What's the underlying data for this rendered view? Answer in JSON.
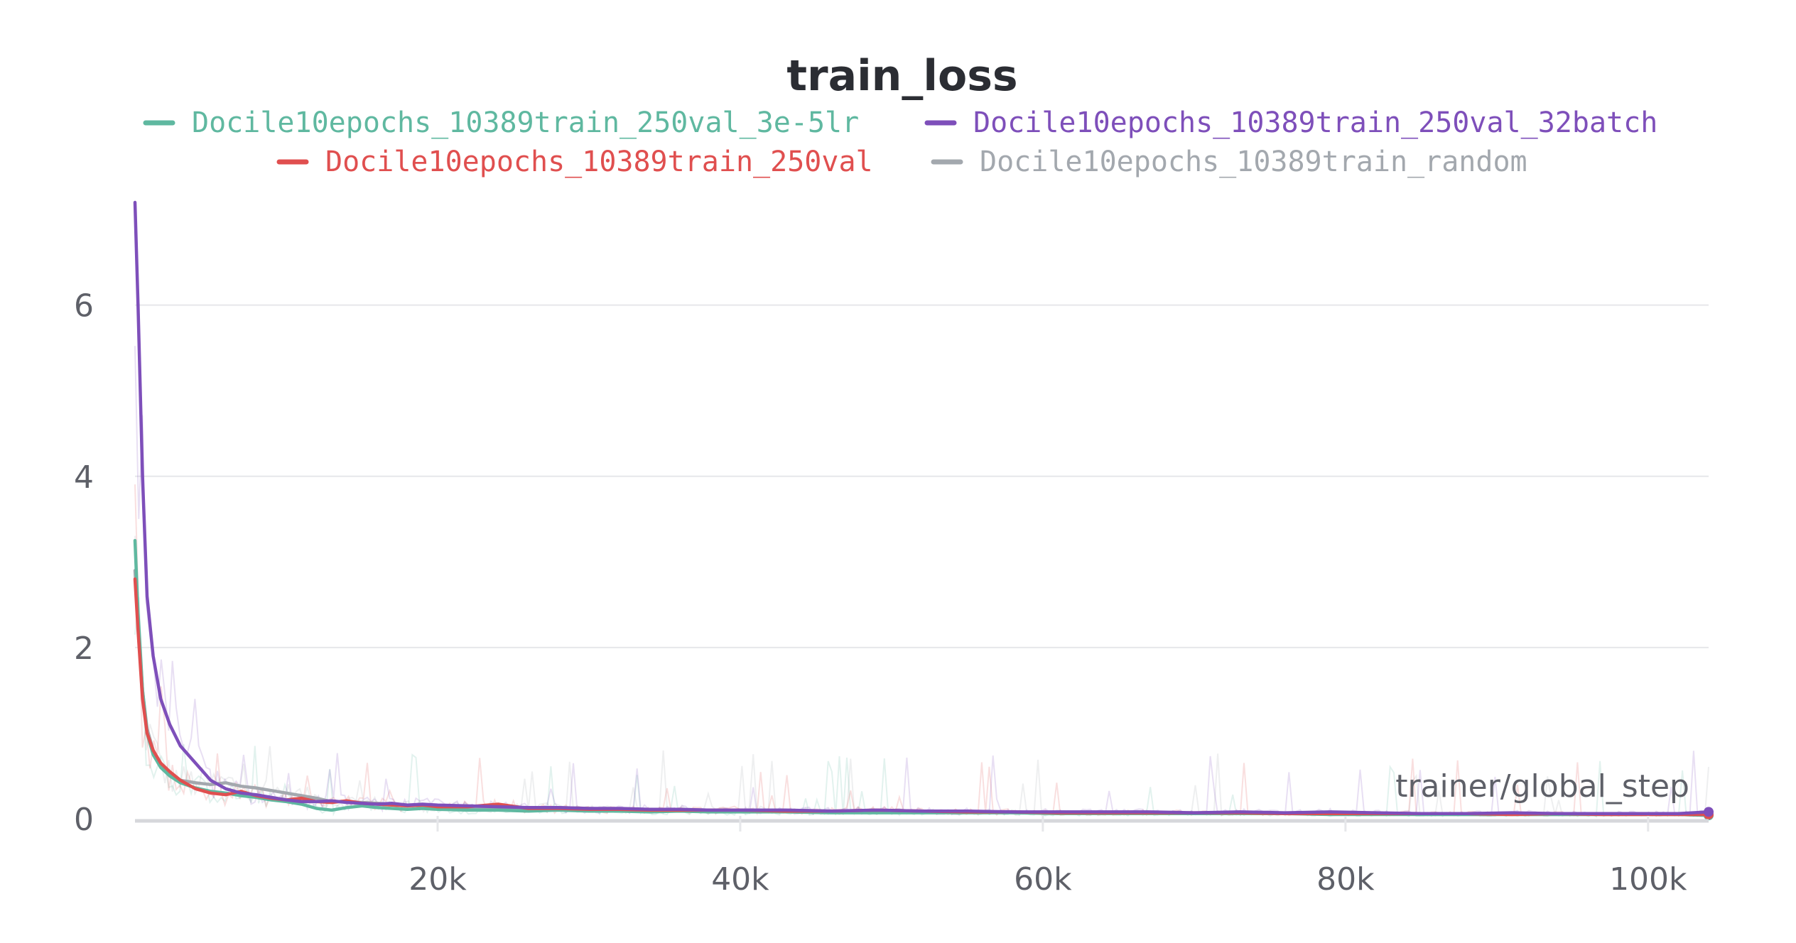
{
  "chart_data": {
    "type": "line",
    "title": "train_loss",
    "xlabel": "trainer/global_step",
    "ylabel": "",
    "xlim": [
      0,
      104000
    ],
    "ylim": [
      0,
      7.2
    ],
    "grid": true,
    "legend_position": "top",
    "x_ticks": [
      {
        "value": 20000,
        "label": "20k"
      },
      {
        "value": 40000,
        "label": "40k"
      },
      {
        "value": 60000,
        "label": "60k"
      },
      {
        "value": 80000,
        "label": "80k"
      },
      {
        "value": 100000,
        "label": "100k"
      }
    ],
    "y_ticks": [
      {
        "value": 0,
        "label": "0"
      },
      {
        "value": 2,
        "label": "2"
      },
      {
        "value": 4,
        "label": "4"
      },
      {
        "value": 6,
        "label": "6"
      }
    ],
    "x": [
      0,
      200,
      500,
      800,
      1200,
      1700,
      2300,
      3000,
      4000,
      5000,
      6000,
      7000,
      8000,
      9000,
      10000,
      11000,
      12000,
      13000,
      14000,
      15000,
      16000,
      17000,
      18000,
      19000,
      20000,
      22000,
      24000,
      26000,
      28000,
      30000,
      32000,
      34000,
      36000,
      38000,
      40000,
      43000,
      46000,
      49000,
      52000,
      55000,
      58000,
      61000,
      64000,
      67000,
      70000,
      73000,
      76000,
      79000,
      82000,
      85000,
      88000,
      91000,
      94000,
      97000,
      100000,
      102000,
      104000
    ],
    "series": [
      {
        "name": "Docile10epochs_10389train_250val_3e-5lr",
        "color": "#5fb8a0",
        "values": [
          3.25,
          2.4,
          1.5,
          1.0,
          0.75,
          0.6,
          0.5,
          0.42,
          0.36,
          0.32,
          0.3,
          0.27,
          0.25,
          0.22,
          0.2,
          0.17,
          0.12,
          0.1,
          0.13,
          0.15,
          0.13,
          0.12,
          0.11,
          0.12,
          0.11,
          0.1,
          0.1,
          0.09,
          0.1,
          0.09,
          0.09,
          0.08,
          0.09,
          0.08,
          0.08,
          0.08,
          0.07,
          0.07,
          0.07,
          0.07,
          0.07,
          0.06,
          0.06,
          0.06,
          0.06,
          0.06,
          0.06,
          0.05,
          0.05,
          0.05,
          0.05,
          0.05,
          0.05,
          0.05,
          0.05,
          0.05,
          0.04
        ]
      },
      {
        "name": "Docile10epochs_10389train_250val_32batch",
        "color": "#7e4fba",
        "values": [
          7.2,
          6.0,
          4.0,
          2.6,
          1.9,
          1.4,
          1.1,
          0.85,
          0.65,
          0.45,
          0.35,
          0.3,
          0.28,
          0.25,
          0.22,
          0.2,
          0.2,
          0.21,
          0.19,
          0.18,
          0.17,
          0.18,
          0.16,
          0.17,
          0.16,
          0.15,
          0.14,
          0.13,
          0.13,
          0.12,
          0.12,
          0.11,
          0.11,
          0.1,
          0.1,
          0.1,
          0.09,
          0.1,
          0.09,
          0.09,
          0.08,
          0.08,
          0.08,
          0.08,
          0.07,
          0.08,
          0.07,
          0.08,
          0.07,
          0.06,
          0.06,
          0.07,
          0.06,
          0.06,
          0.06,
          0.06,
          0.08
        ]
      },
      {
        "name": "Docile10epochs_10389train_250val",
        "color": "#e04f4f",
        "values": [
          2.8,
          2.2,
          1.4,
          1.0,
          0.8,
          0.65,
          0.55,
          0.45,
          0.35,
          0.3,
          0.28,
          0.32,
          0.27,
          0.24,
          0.22,
          0.24,
          0.2,
          0.19,
          0.21,
          0.18,
          0.17,
          0.16,
          0.15,
          0.16,
          0.14,
          0.14,
          0.17,
          0.12,
          0.12,
          0.11,
          0.11,
          0.1,
          0.1,
          0.1,
          0.1,
          0.09,
          0.09,
          0.1,
          0.09,
          0.08,
          0.08,
          0.07,
          0.07,
          0.07,
          0.07,
          0.07,
          0.06,
          0.06,
          0.06,
          0.06,
          0.06,
          0.05,
          0.06,
          0.05,
          0.05,
          0.05,
          0.05
        ]
      },
      {
        "name": "Docile10epochs_10389train_random",
        "color": "#a3a8ae",
        "values": [
          2.9,
          2.3,
          1.5,
          1.05,
          0.8,
          0.62,
          0.5,
          0.45,
          0.42,
          0.4,
          0.42,
          0.38,
          0.36,
          0.33,
          0.3,
          0.27,
          0.24,
          0.2,
          0.2,
          0.19,
          0.18,
          0.17,
          0.16,
          0.15,
          0.14,
          0.13,
          0.13,
          0.12,
          0.13,
          0.12,
          0.11,
          0.11,
          0.11,
          0.1,
          0.1,
          0.1,
          0.09,
          0.09,
          0.08,
          0.08,
          0.08,
          0.07,
          0.07,
          0.07,
          0.06,
          0.06,
          0.06,
          0.06,
          0.06,
          0.05,
          0.05,
          0.05,
          0.05,
          0.05,
          0.05,
          0.05,
          0.04
        ]
      }
    ]
  }
}
